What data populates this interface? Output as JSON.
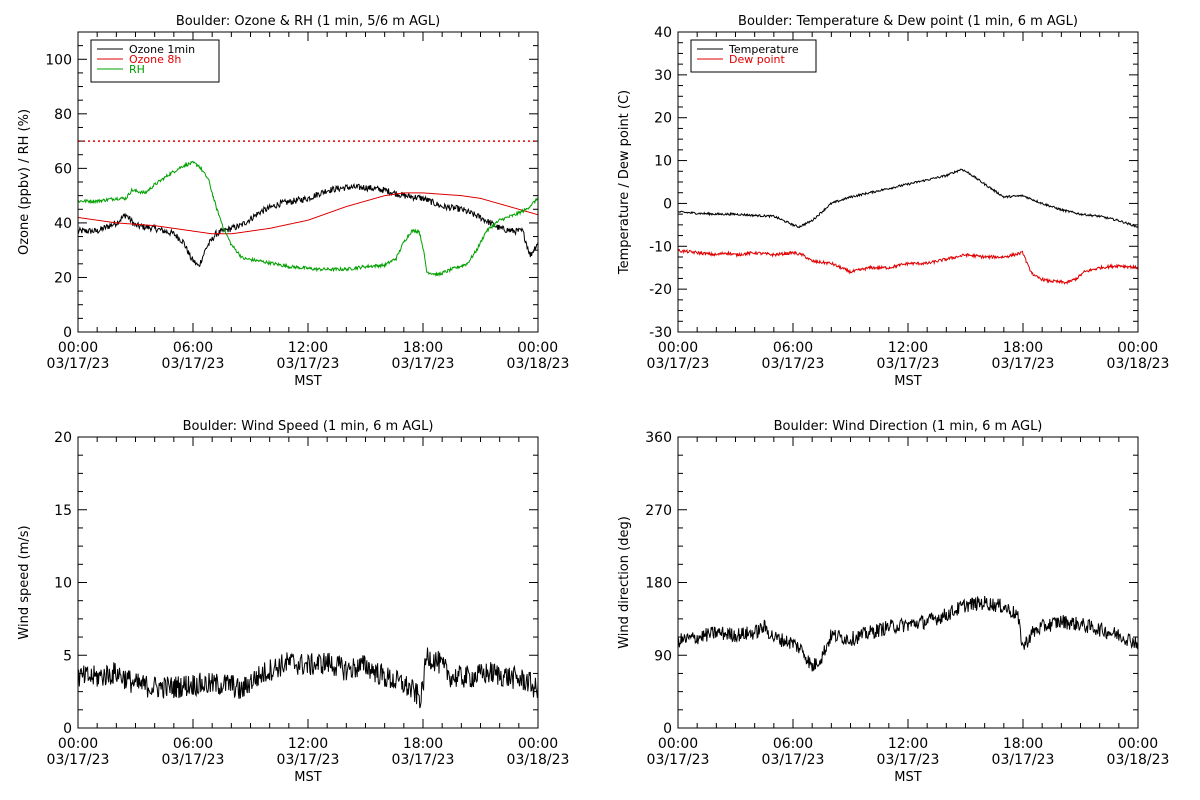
{
  "chart_data": [
    {
      "type": "line",
      "title": "Boulder: Ozone & RH (1 min, 5/6 m AGL)",
      "ylabel": "Ozone (ppbv) / RH (%)",
      "xlabel": "MST",
      "ylim": [
        0,
        110
      ],
      "yticks": [
        0,
        20,
        40,
        60,
        80,
        100
      ],
      "xlim": [
        0,
        24
      ],
      "xticks": [
        0,
        6,
        12,
        18,
        24
      ],
      "xtick_labels": [
        [
          "00:00",
          "03/17/23"
        ],
        [
          "06:00",
          "03/17/23"
        ],
        [
          "12:00",
          "03/17/23"
        ],
        [
          "18:00",
          "03/17/23"
        ],
        [
          "00:00",
          "03/18/23"
        ]
      ],
      "legend": "top-left",
      "reference_line": {
        "y": 70,
        "color": "#e00000",
        "style": "dotted"
      },
      "series": [
        {
          "name": "Ozone 1min",
          "color": "#000000",
          "noise": 1.2,
          "points": [
            [
              0,
              37
            ],
            [
              1,
              37
            ],
            [
              2,
              40
            ],
            [
              2.5,
              43
            ],
            [
              3,
              39
            ],
            [
              4,
              38
            ],
            [
              5,
              36
            ],
            [
              5.5,
              33
            ],
            [
              5.9,
              27
            ],
            [
              6.3,
              24
            ],
            [
              6.7,
              31
            ],
            [
              7.2,
              36
            ],
            [
              8,
              38
            ],
            [
              8.5,
              39
            ],
            [
              9.5,
              44
            ],
            [
              10.5,
              47
            ],
            [
              12,
              49
            ],
            [
              13,
              52
            ],
            [
              14,
              53
            ],
            [
              15,
              53
            ],
            [
              16,
              52
            ],
            [
              17,
              50
            ],
            [
              18,
              49
            ],
            [
              19,
              46
            ],
            [
              20,
              45
            ],
            [
              21,
              42
            ],
            [
              22,
              38
            ],
            [
              22.7,
              37
            ],
            [
              23.2,
              37
            ],
            [
              23.6,
              28
            ],
            [
              24,
              33
            ]
          ]
        },
        {
          "name": "Ozone 8h",
          "color": "#e00000",
          "noise": 0,
          "points": [
            [
              0,
              42
            ],
            [
              2,
              40
            ],
            [
              4,
              39
            ],
            [
              6,
              37
            ],
            [
              7,
              36
            ],
            [
              8,
              36
            ],
            [
              10,
              38
            ],
            [
              12,
              41
            ],
            [
              14,
              46
            ],
            [
              16,
              50
            ],
            [
              17,
              51
            ],
            [
              18,
              51
            ],
            [
              19,
              50.5
            ],
            [
              20,
              50
            ],
            [
              21,
              49
            ],
            [
              22,
              47
            ],
            [
              23,
              45
            ],
            [
              24,
              43
            ]
          ]
        },
        {
          "name": "RH",
          "color": "#00a000",
          "noise": 0.6,
          "points": [
            [
              0,
              48
            ],
            [
              1,
              48
            ],
            [
              2,
              49
            ],
            [
              2.5,
              49
            ],
            [
              2.8,
              52
            ],
            [
              3.5,
              51
            ],
            [
              4,
              54
            ],
            [
              4.8,
              58
            ],
            [
              5.5,
              61
            ],
            [
              6,
              62
            ],
            [
              6.3,
              61
            ],
            [
              6.8,
              56
            ],
            [
              7.2,
              46
            ],
            [
              7.6,
              38
            ],
            [
              8,
              32
            ],
            [
              8.6,
              27
            ],
            [
              9.5,
              26
            ],
            [
              11,
              24
            ],
            [
              12.5,
              23
            ],
            [
              14,
              23
            ],
            [
              15,
              24
            ],
            [
              16,
              24.5
            ],
            [
              16.6,
              27
            ],
            [
              17,
              33
            ],
            [
              17.4,
              37
            ],
            [
              17.8,
              37
            ],
            [
              18,
              31
            ],
            [
              18.2,
              22
            ],
            [
              18.8,
              21
            ],
            [
              19.5,
              23
            ],
            [
              20.3,
              25
            ],
            [
              20.8,
              30
            ],
            [
              21.3,
              37
            ],
            [
              22,
              41
            ],
            [
              22.8,
              43
            ],
            [
              23.4,
              45
            ],
            [
              24,
              49
            ]
          ]
        }
      ]
    },
    {
      "type": "line",
      "title": "Boulder: Temperature & Dew point (1 min, 6 m AGL)",
      "ylabel": "Temperature / Dew point (C)",
      "xlabel": "MST",
      "ylim": [
        -30,
        40
      ],
      "yticks": [
        -30,
        -20,
        -10,
        0,
        10,
        20,
        30,
        40
      ],
      "xlim": [
        0,
        24
      ],
      "xticks": [
        0,
        6,
        12,
        18,
        24
      ],
      "xtick_labels": [
        [
          "00:00",
          "03/17/23"
        ],
        [
          "06:00",
          "03/17/23"
        ],
        [
          "12:00",
          "03/17/23"
        ],
        [
          "18:00",
          "03/17/23"
        ],
        [
          "00:00",
          "03/18/23"
        ]
      ],
      "legend": "top-left",
      "series": [
        {
          "name": "Temperature",
          "color": "#000000",
          "noise": 0.25,
          "points": [
            [
              0,
              -2
            ],
            [
              1,
              -2.3
            ],
            [
              2,
              -2.5
            ],
            [
              3,
              -2.5
            ],
            [
              4,
              -2.8
            ],
            [
              5,
              -3
            ],
            [
              5.5,
              -4
            ],
            [
              6,
              -5
            ],
            [
              6.3,
              -5.5
            ],
            [
              7,
              -4
            ],
            [
              7.5,
              -2
            ],
            [
              8,
              0
            ],
            [
              9,
              1.5
            ],
            [
              10,
              2.5
            ],
            [
              11,
              3.5
            ],
            [
              12,
              4.5
            ],
            [
              13,
              5.5
            ],
            [
              14,
              6.5
            ],
            [
              14.8,
              8
            ],
            [
              15.2,
              7
            ],
            [
              16,
              4.5
            ],
            [
              16.5,
              3
            ],
            [
              17,
              1.5
            ],
            [
              18,
              1.8
            ],
            [
              19,
              0
            ],
            [
              20,
              -1.5
            ],
            [
              21,
              -2.5
            ],
            [
              22,
              -3
            ],
            [
              23,
              -4
            ],
            [
              24,
              -5.5
            ]
          ]
        },
        {
          "name": "Dew point",
          "color": "#e00000",
          "noise": 0.35,
          "points": [
            [
              0,
              -11
            ],
            [
              1,
              -11.5
            ],
            [
              2,
              -12
            ],
            [
              2.5,
              -11.5
            ],
            [
              3,
              -12
            ],
            [
              4,
              -11.5
            ],
            [
              5,
              -12
            ],
            [
              6,
              -11.5
            ],
            [
              6.5,
              -12
            ],
            [
              7,
              -13.5
            ],
            [
              8,
              -14
            ],
            [
              8.5,
              -15
            ],
            [
              9,
              -16
            ],
            [
              10,
              -15
            ],
            [
              11,
              -15
            ],
            [
              12,
              -14
            ],
            [
              13,
              -14
            ],
            [
              14,
              -13
            ],
            [
              15,
              -12
            ],
            [
              16,
              -12.5
            ],
            [
              17,
              -12.5
            ],
            [
              17.5,
              -12
            ],
            [
              18,
              -11.5
            ],
            [
              18.3,
              -15
            ],
            [
              18.6,
              -17
            ],
            [
              19.2,
              -18
            ],
            [
              20.3,
              -18.5
            ],
            [
              20.8,
              -17.5
            ],
            [
              21.2,
              -16
            ],
            [
              22,
              -15
            ],
            [
              23,
              -14.5
            ],
            [
              24,
              -15
            ]
          ]
        }
      ]
    },
    {
      "type": "line",
      "title": "Boulder: Wind Speed (1 min, 6 m AGL)",
      "ylabel": "Wind speed (m/s)",
      "xlabel": "MST",
      "ylim": [
        0,
        20
      ],
      "yticks": [
        0,
        5,
        10,
        15,
        20
      ],
      "xlim": [
        0,
        24
      ],
      "xticks": [
        0,
        6,
        12,
        18,
        24
      ],
      "xtick_labels": [
        [
          "00:00",
          "03/17/23"
        ],
        [
          "06:00",
          "03/17/23"
        ],
        [
          "12:00",
          "03/17/23"
        ],
        [
          "18:00",
          "03/17/23"
        ],
        [
          "00:00",
          "03/18/23"
        ]
      ],
      "series": [
        {
          "name": "",
          "color": "#000000",
          "noise": 0.8,
          "points": [
            [
              0,
              3.5
            ],
            [
              1,
              3.5
            ],
            [
              2,
              3.8
            ],
            [
              3,
              3
            ],
            [
              4,
              2.8
            ],
            [
              5,
              2.8
            ],
            [
              6,
              3
            ],
            [
              7,
              3
            ],
            [
              8,
              3
            ],
            [
              8.5,
              2.5
            ],
            [
              9,
              3.2
            ],
            [
              10,
              4
            ],
            [
              11,
              4.5
            ],
            [
              12,
              4.3
            ],
            [
              13,
              4.5
            ],
            [
              14,
              4
            ],
            [
              15,
              4.3
            ],
            [
              16,
              3.5
            ],
            [
              17,
              3
            ],
            [
              17.5,
              2.5
            ],
            [
              17.9,
              2
            ],
            [
              18.2,
              5
            ],
            [
              18.8,
              4.5
            ],
            [
              19.5,
              3.5
            ],
            [
              20.5,
              3.5
            ],
            [
              21.5,
              3.8
            ],
            [
              22.5,
              3.5
            ],
            [
              23.5,
              3.2
            ],
            [
              24,
              2.5
            ]
          ]
        }
      ]
    },
    {
      "type": "line",
      "title": "Boulder: Wind Direction (1 min, 6 m AGL)",
      "ylabel": "Wind direction (deg)",
      "xlabel": "MST",
      "ylim": [
        0,
        360
      ],
      "yticks": [
        0,
        90,
        180,
        270,
        360
      ],
      "xlim": [
        0,
        24
      ],
      "xticks": [
        0,
        6,
        12,
        18,
        24
      ],
      "xtick_labels": [
        [
          "00:00",
          "03/17/23"
        ],
        [
          "06:00",
          "03/17/23"
        ],
        [
          "12:00",
          "03/17/23"
        ],
        [
          "18:00",
          "03/17/23"
        ],
        [
          "00:00",
          "03/18/23"
        ]
      ],
      "series": [
        {
          "name": "",
          "color": "#000000",
          "noise": 9,
          "points": [
            [
              0,
              108
            ],
            [
              1,
              112
            ],
            [
              2,
              118
            ],
            [
              3,
              115
            ],
            [
              4,
              118
            ],
            [
              4.5,
              125
            ],
            [
              5,
              112
            ],
            [
              6,
              105
            ],
            [
              6.5,
              96
            ],
            [
              7,
              75
            ],
            [
              7.5,
              88
            ],
            [
              8,
              115
            ],
            [
              9,
              110
            ],
            [
              10,
              118
            ],
            [
              11,
              125
            ],
            [
              12,
              128
            ],
            [
              13,
              132
            ],
            [
              14,
              140
            ],
            [
              15,
              152
            ],
            [
              16,
              155
            ],
            [
              17,
              150
            ],
            [
              17.7,
              140
            ],
            [
              18,
              100
            ],
            [
              18.5,
              118
            ],
            [
              19,
              125
            ],
            [
              20,
              132
            ],
            [
              21,
              128
            ],
            [
              22,
              122
            ],
            [
              23,
              115
            ],
            [
              24,
              105
            ]
          ]
        }
      ]
    }
  ]
}
